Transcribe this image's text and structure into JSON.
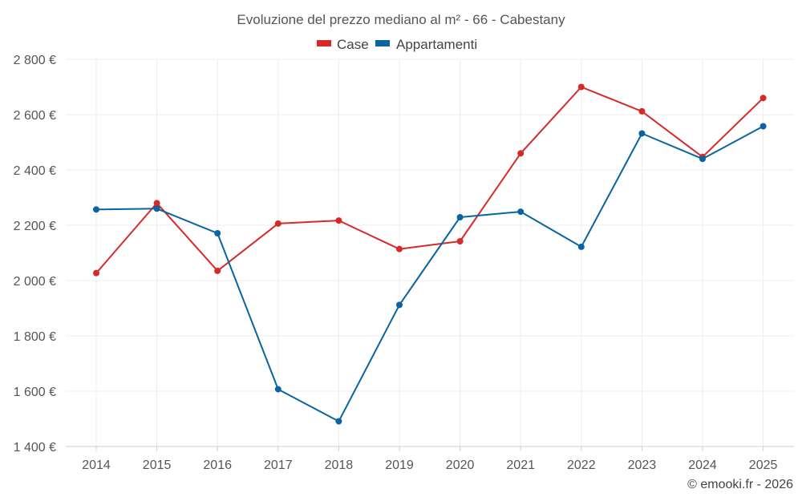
{
  "chart_data": {
    "type": "line",
    "title": "Evoluzione del prezzo mediano al m² - 66 - Cabestany",
    "categories": [
      "2014",
      "2015",
      "2016",
      "2017",
      "2018",
      "2019",
      "2020",
      "2021",
      "2022",
      "2023",
      "2024",
      "2025"
    ],
    "series": [
      {
        "name": "Case",
        "color": "#d62a2a",
        "values": [
          2027,
          2280,
          2035,
          2206,
          2217,
          2114,
          2142,
          2460,
          2700,
          2612,
          2447,
          2660
        ]
      },
      {
        "name": "Appartamenti",
        "color": "#0a64a0",
        "values": [
          2257,
          2260,
          2171,
          1607,
          1491,
          1912,
          2229,
          2249,
          2122,
          2532,
          2440,
          2558
        ]
      }
    ],
    "ylim": [
      1400,
      2800
    ],
    "yticks": [
      1400,
      1600,
      1800,
      2000,
      2200,
      2400,
      2600,
      2800
    ],
    "ytick_labels": [
      "1 400 €",
      "1 600 €",
      "1 800 €",
      "2 000 €",
      "2 200 €",
      "2 400 €",
      "2 600 €",
      "2 800 €"
    ],
    "legend_position": "top-center",
    "grid": true
  },
  "credit": "© emooki.fr - 2026"
}
